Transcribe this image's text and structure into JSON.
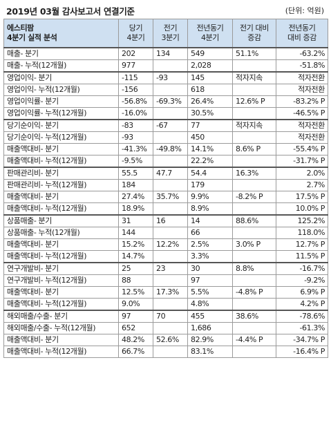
{
  "title": "2019년 03월 감사보고서 연결기준",
  "unit": "(단위: 억원)",
  "header": {
    "label_line1": "에스티팜",
    "label_line2": "4분기 실적 분석",
    "col1_line1": "당기",
    "col1_line2": "4분기",
    "col2_line1": "전기",
    "col2_line2": "3분기",
    "col3_line1": "전년동기",
    "col3_line2": "4분기",
    "col4_line1": "전기 대비",
    "col4_line2": "증감",
    "col5_line1": "전년동기",
    "col5_line2": "대비 증감"
  },
  "rows": [
    {
      "label": "매출- 분기",
      "c1": "202",
      "c2": "134",
      "c3": "549",
      "c4": "51.1%",
      "c5": "-63.2%",
      "g": true
    },
    {
      "label": "매출- 누적(12개월)",
      "c1": "977",
      "c2": "",
      "c3": "2,028",
      "c4": "",
      "c5": "-51.8%"
    },
    {
      "label": "영업이익- 분기",
      "c1": "-115",
      "c2": "-93",
      "c3": "145",
      "c4": "적자지속",
      "c5": "적자전환",
      "g": true
    },
    {
      "label": "영업이익- 누적(12개월)",
      "c1": "-156",
      "c2": "",
      "c3": "618",
      "c4": "",
      "c5": "적자전환"
    },
    {
      "label": "영업이익률- 분기",
      "c1": "-56.8%",
      "c2": "-69.3%",
      "c3": "26.4%",
      "c4": "12.6% P",
      "c5": "-83.2% P"
    },
    {
      "label": "영업이익률- 누적(12개월)",
      "c1": "-16.0%",
      "c2": "",
      "c3": "30.5%",
      "c4": "",
      "c5": "-46.5% P"
    },
    {
      "label": "당기순이익- 분기",
      "c1": "-83",
      "c2": "-67",
      "c3": "77",
      "c4": "적자지속",
      "c5": "적자전환",
      "g": true
    },
    {
      "label": "당기순이익- 누적(12개월)",
      "c1": "-93",
      "c2": "",
      "c3": "450",
      "c4": "",
      "c5": "적자전환"
    },
    {
      "label": "매출액대비- 분기",
      "c1": "-41.3%",
      "c2": "-49.8%",
      "c3": "14.1%",
      "c4": "8.6% P",
      "c5": "-55.4% P"
    },
    {
      "label": "매출액대비- 누적(12개월)",
      "c1": "-9.5%",
      "c2": "",
      "c3": "22.2%",
      "c4": "",
      "c5": "-31.7% P"
    },
    {
      "label": "판매관리비- 분기",
      "c1": "55.5",
      "c2": "47.7",
      "c3": "54.4",
      "c4": "16.3%",
      "c5": "2.0%",
      "g": true
    },
    {
      "label": "판매관리비- 누적(12개월)",
      "c1": "184",
      "c2": "",
      "c3": "179",
      "c4": "",
      "c5": "2.7%"
    },
    {
      "label": "매출액대비- 분기",
      "c1": "27.4%",
      "c2": "35.7%",
      "c3": "9.9%",
      "c4": "-8.2% P",
      "c5": "17.5% P"
    },
    {
      "label": "매출액대비- 누적(12개월)",
      "c1": "18.9%",
      "c2": "",
      "c3": "8.9%",
      "c4": "",
      "c5": "10.0% P"
    },
    {
      "label": "상품매출- 분기",
      "c1": "31",
      "c2": "16",
      "c3": "14",
      "c4": "88.6%",
      "c5": "125.2%",
      "g": true
    },
    {
      "label": "상품매출- 누적(12개월)",
      "c1": "144",
      "c2": "",
      "c3": "66",
      "c4": "",
      "c5": "118.0%"
    },
    {
      "label": "매출액대비- 분기",
      "c1": "15.2%",
      "c2": "12.2%",
      "c3": "2.5%",
      "c4": "3.0% P",
      "c5": "12.7% P"
    },
    {
      "label": "매출액대비- 누적(12개월)",
      "c1": "14.7%",
      "c2": "",
      "c3": "3.3%",
      "c4": "",
      "c5": "11.5% P"
    },
    {
      "label": "연구개발비- 분기",
      "c1": "25",
      "c2": "23",
      "c3": "30",
      "c4": "8.8%",
      "c5": "-16.7%",
      "g": true
    },
    {
      "label": "연구개발비- 누적(12개월)",
      "c1": "88",
      "c2": "",
      "c3": "97",
      "c4": "",
      "c5": "-9.2%"
    },
    {
      "label": "매출액대비- 분기",
      "c1": "12.5%",
      "c2": "17.3%",
      "c3": "5.5%",
      "c4": "-4.8% P",
      "c5": "6.9% P"
    },
    {
      "label": "매출액대비- 누적(12개월)",
      "c1": "9.0%",
      "c2": "",
      "c3": "4.8%",
      "c4": "",
      "c5": "4.2% P"
    },
    {
      "label": "해외매출/수출- 분기",
      "c1": "97",
      "c2": "70",
      "c3": "455",
      "c4": "38.6%",
      "c5": "-78.6%",
      "g": true
    },
    {
      "label": "해외매출/수출- 누적(12개월)",
      "c1": "652",
      "c2": "",
      "c3": "1,686",
      "c4": "",
      "c5": "-61.3%"
    },
    {
      "label": "매출액대비- 분기",
      "c1": "48.2%",
      "c2": "52.6%",
      "c3": "82.9%",
      "c4": "-4.4% P",
      "c5": "-34.7% P"
    },
    {
      "label": "매출액대비- 누적(12개월)",
      "c1": "66.7%",
      "c2": "",
      "c3": "83.1%",
      "c4": "",
      "c5": "-16.4% P"
    }
  ]
}
